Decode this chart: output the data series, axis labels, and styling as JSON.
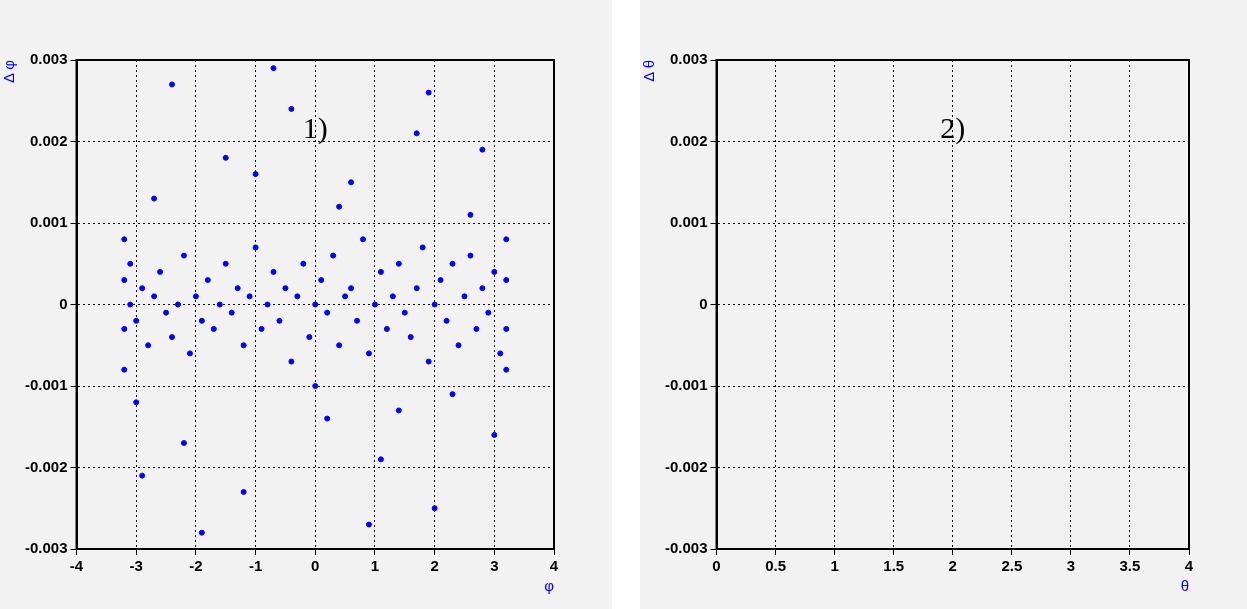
{
  "chart_data": [
    {
      "type": "scatter",
      "xlabel": "φ",
      "ylabel": "Δ φ",
      "annotations": [
        "1)"
      ],
      "xlim": [
        -4,
        4
      ],
      "xticks": [
        -4,
        -3,
        -2,
        -1,
        0,
        1,
        2,
        3,
        4
      ],
      "ylim": [
        -0.003,
        0.003
      ],
      "yticks": [
        -0.003,
        -0.002,
        -0.001,
        0,
        0.001,
        0.002,
        0.003
      ],
      "grid": true,
      "marker": "circle",
      "legend": false,
      "series": [
        {
          "color": "#0000ff",
          "x": [
            -3.2,
            -3.2,
            -3.2,
            -3.2,
            -3.1,
            -3.1,
            -3.0,
            -2.9,
            -2.8,
            -2.7,
            -2.6,
            -2.5,
            -2.4,
            -2.3,
            -2.2,
            -2.1,
            -2.0,
            -1.9,
            -1.8,
            -1.7,
            -1.6,
            -1.5,
            -1.4,
            -1.3,
            -1.2,
            -1.1,
            -1.0,
            -0.9,
            -0.8,
            -0.7,
            -0.6,
            -0.5,
            -0.4,
            -0.3,
            -0.2,
            -0.1,
            0.0,
            0.1,
            0.2,
            0.3,
            0.4,
            0.5,
            0.6,
            0.7,
            0.8,
            0.9,
            1.0,
            1.1,
            1.2,
            1.3,
            1.4,
            1.5,
            1.6,
            1.7,
            1.8,
            1.9,
            2.0,
            2.1,
            2.2,
            2.3,
            2.4,
            2.5,
            2.6,
            2.7,
            2.8,
            2.9,
            3.0,
            3.1,
            3.2,
            3.2,
            3.2,
            3.2,
            -2.7,
            -1.5,
            -0.4,
            0.6,
            1.7,
            2.6,
            -3.0,
            -2.2,
            -1.2,
            0.2,
            1.1,
            2.3,
            3.0,
            -2.4,
            -0.7,
            0.9,
            2.0,
            -1.9,
            0.4,
            1.4,
            2.8,
            -2.9,
            -1.0,
            0.0,
            1.9
          ],
          "values": [
            0.0003,
            -0.0003,
            0.0008,
            -0.0008,
            0.0,
            0.0005,
            -0.0002,
            0.0002,
            -0.0005,
            0.0001,
            0.0004,
            -0.0001,
            -0.0004,
            0.0,
            0.0006,
            -0.0006,
            0.0001,
            -0.0002,
            0.0003,
            -0.0003,
            0.0,
            0.0005,
            -0.0001,
            0.0002,
            -0.0005,
            0.0001,
            0.0007,
            -0.0003,
            0.0,
            0.0004,
            -0.0002,
            0.0002,
            -0.0007,
            0.0001,
            0.0005,
            -0.0004,
            0.0,
            0.0003,
            -0.0001,
            0.0006,
            -0.0005,
            0.0001,
            0.0002,
            -0.0002,
            0.0008,
            -0.0006,
            0.0,
            0.0004,
            -0.0003,
            0.0001,
            0.0005,
            -0.0001,
            -0.0004,
            0.0002,
            0.0007,
            -0.0007,
            0.0,
            0.0003,
            -0.0002,
            0.0005,
            -0.0005,
            0.0001,
            0.0006,
            -0.0003,
            0.0002,
            -0.0001,
            0.0004,
            -0.0006,
            0.0003,
            -0.0003,
            0.0008,
            -0.0008,
            0.0013,
            0.0018,
            0.0024,
            0.0015,
            0.0021,
            0.0011,
            -0.0012,
            -0.0017,
            -0.0023,
            -0.0014,
            -0.0019,
            -0.0011,
            -0.0016,
            0.0027,
            0.0029,
            -0.0027,
            -0.0025,
            -0.0028,
            0.0012,
            -0.0013,
            0.0019,
            -0.0021,
            0.0016,
            -0.001,
            0.0026
          ]
        }
      ]
    },
    {
      "type": "scatter",
      "xlabel": "θ",
      "ylabel": "Δ θ",
      "annotations": [
        "2)"
      ],
      "xlim": [
        0,
        4
      ],
      "xticks": [
        0,
        0.5,
        1,
        1.5,
        2,
        2.5,
        3,
        3.5,
        4
      ],
      "ylim": [
        -0.003,
        0.003
      ],
      "yticks": [
        -0.003,
        -0.002,
        -0.001,
        0,
        0.001,
        0.002,
        0.003
      ],
      "grid": true,
      "legend": false
    }
  ]
}
